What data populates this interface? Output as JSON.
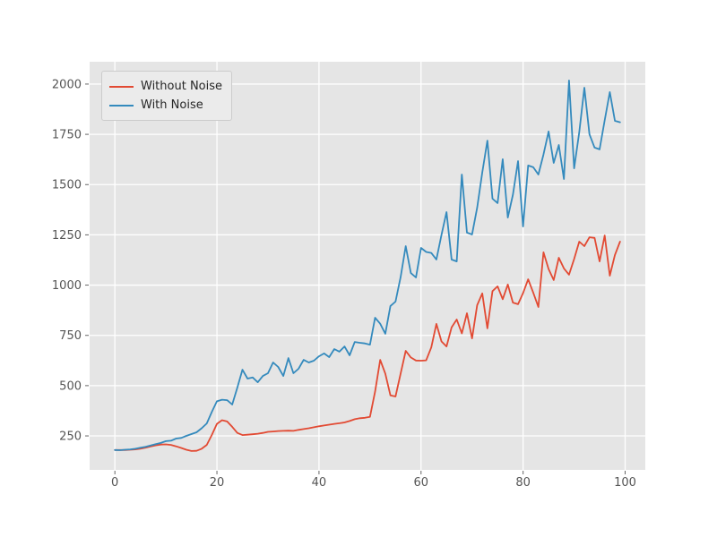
{
  "figure": {
    "background": "#ffffff",
    "axes_background": "#e5e5e5",
    "grid_color": "#ffffff",
    "tick_color": "#666666",
    "tick_label_color": "#555555"
  },
  "legend": {
    "items": [
      {
        "label": "Without Noise",
        "color": "#e24a33"
      },
      {
        "label": "With Noise",
        "color": "#348abd"
      }
    ]
  },
  "chart_data": {
    "type": "line",
    "title": "",
    "xlabel": "",
    "ylabel": "",
    "grid": true,
    "legend_position": "upper left",
    "xlim": [
      -4.95,
      103.95
    ],
    "ylim": [
      81,
      2111
    ],
    "x_ticks": [
      0,
      20,
      40,
      60,
      80,
      100
    ],
    "y_ticks": [
      250,
      500,
      750,
      1000,
      1250,
      1500,
      1750,
      2000
    ],
    "x": [
      0,
      1,
      2,
      3,
      4,
      5,
      6,
      7,
      8,
      9,
      10,
      11,
      12,
      13,
      14,
      15,
      16,
      17,
      18,
      19,
      20,
      21,
      22,
      23,
      24,
      25,
      26,
      27,
      28,
      29,
      30,
      31,
      32,
      33,
      34,
      35,
      36,
      37,
      38,
      39,
      40,
      41,
      42,
      43,
      44,
      45,
      46,
      47,
      48,
      49,
      50,
      51,
      52,
      53,
      54,
      55,
      56,
      57,
      58,
      59,
      60,
      61,
      62,
      63,
      64,
      65,
      66,
      67,
      68,
      69,
      70,
      71,
      72,
      73,
      74,
      75,
      76,
      77,
      78,
      79,
      80,
      81,
      82,
      83,
      84,
      85,
      86,
      87,
      88,
      89,
      90,
      91,
      92,
      93,
      94,
      95,
      96,
      97,
      98,
      99
    ],
    "series": [
      {
        "name": "Without Noise",
        "color": "#e24a33",
        "values": [
          180,
          180,
          180,
          181,
          183,
          186,
          191,
          197,
          203,
          207,
          208,
          205,
          198,
          190,
          181,
          175,
          176,
          186,
          205,
          255,
          310,
          328,
          322,
          295,
          265,
          254,
          256,
          258,
          261,
          265,
          270,
          272,
          274,
          275,
          276,
          275,
          280,
          284,
          288,
          293,
          298,
          302,
          306,
          310,
          313,
          317,
          324,
          333,
          338,
          340,
          345,
          470,
          628,
          560,
          452,
          446,
          560,
          673,
          640,
          625,
          624,
          626,
          690,
          807,
          720,
          695,
          790,
          829,
          760,
          860,
          735,
          900,
          959,
          785,
          970,
          994,
          930,
          1003,
          913,
          905,
          960,
          1029,
          962,
          891,
          1163,
          1080,
          1025,
          1136,
          1083,
          1052,
          1130,
          1216,
          1194,
          1238,
          1235,
          1118,
          1247,
          1047,
          1150,
          1216
        ]
      },
      {
        "name": "With Noise",
        "color": "#348abd",
        "values": [
          180,
          179,
          181,
          183,
          186,
          191,
          196,
          202,
          209,
          215,
          224,
          226,
          237,
          240,
          250,
          259,
          268,
          288,
          312,
          370,
          422,
          430,
          428,
          406,
          490,
          579,
          535,
          541,
          517,
          548,
          562,
          615,
          593,
          548,
          637,
          562,
          584,
          628,
          615,
          624,
          646,
          660,
          642,
          682,
          669,
          695,
          651,
          717,
          713,
          710,
          704,
          838,
          808,
          758,
          896,
          918,
          1040,
          1194,
          1060,
          1038,
          1185,
          1165,
          1160,
          1127,
          1250,
          1363,
          1127,
          1118,
          1550,
          1261,
          1252,
          1385,
          1560,
          1719,
          1430,
          1408,
          1626,
          1336,
          1450,
          1617,
          1292,
          1595,
          1586,
          1550,
          1650,
          1764,
          1608,
          1697,
          1528,
          2018,
          1581,
          1760,
          1982,
          1750,
          1684,
          1675,
          1820,
          1960,
          1817,
          1810
        ]
      }
    ]
  }
}
